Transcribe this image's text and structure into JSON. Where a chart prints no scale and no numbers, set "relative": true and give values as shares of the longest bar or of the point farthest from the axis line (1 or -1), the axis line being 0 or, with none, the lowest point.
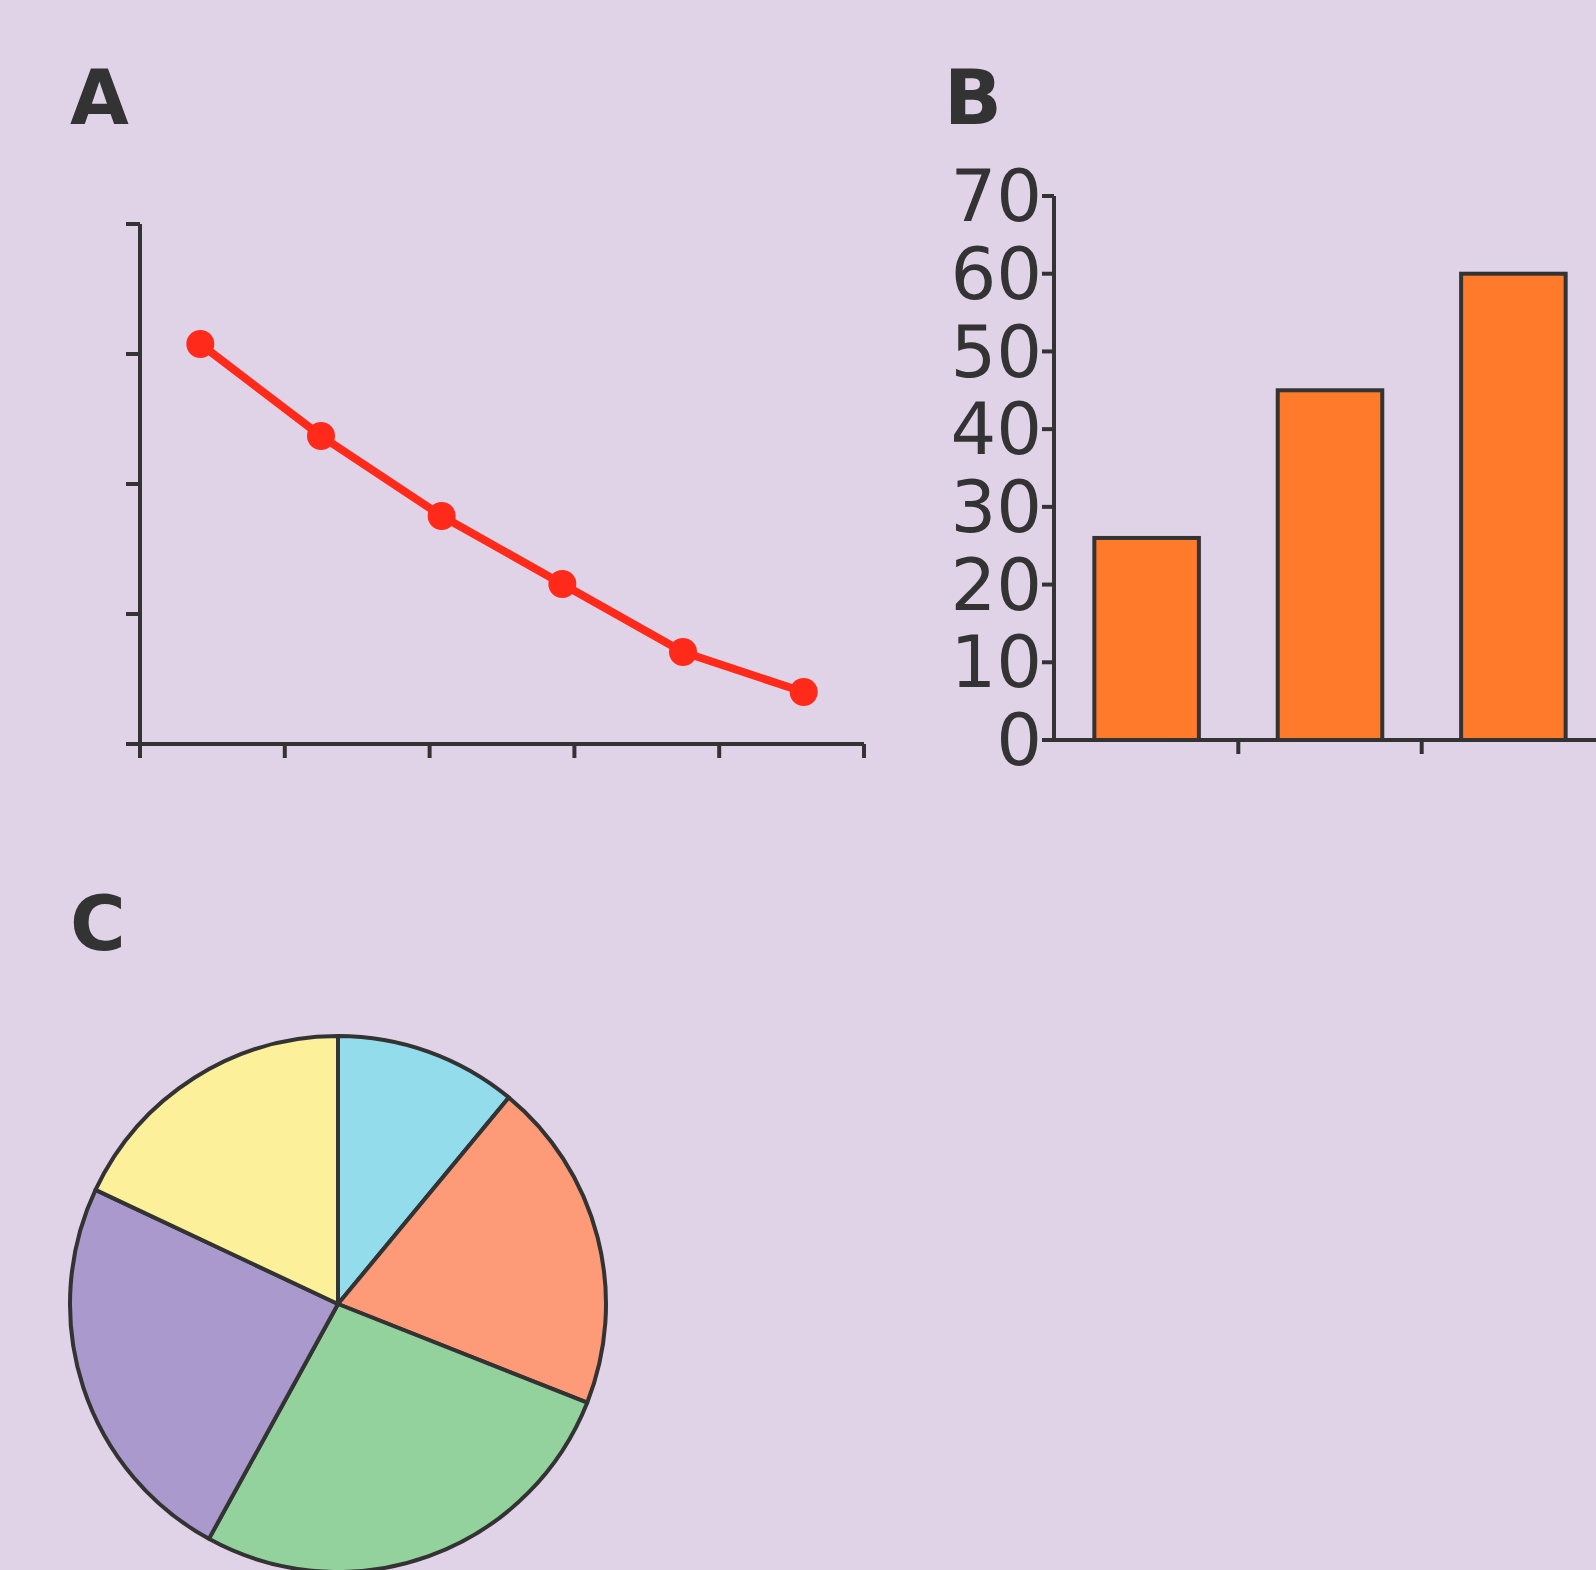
{
  "chart_data": [
    {
      "type": "line",
      "title": "A",
      "categories": [
        null,
        null,
        null,
        null,
        null,
        null
      ],
      "values": [
        1,
        0.77,
        0.57,
        0.4,
        0.23,
        0.13
      ],
      "relative": true,
      "color": "#ff2a1a",
      "marker": "circle"
    },
    {
      "type": "bar",
      "title": "B",
      "categories": [
        null,
        null,
        null
      ],
      "values": [
        26,
        45,
        60
      ],
      "color": "#ff7a2a",
      "ylim": [
        0,
        70
      ],
      "yticks": [
        0,
        10,
        20,
        30,
        40,
        50,
        60,
        70
      ]
    },
    {
      "type": "pie",
      "title": "C",
      "categories": [
        null,
        null,
        null,
        null,
        null
      ],
      "values": [
        11,
        20,
        27,
        24,
        18
      ],
      "colors": [
        "#93dcec",
        "#fd9a78",
        "#93d29c",
        "#aa99cc",
        "#fdf09a"
      ]
    }
  ]
}
